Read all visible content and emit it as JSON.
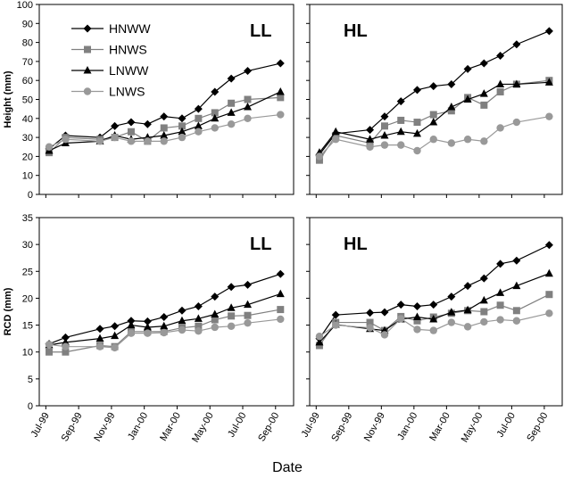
{
  "xlabel": "Date",
  "chart_data": [
    {
      "type": "line",
      "annotation": "LL",
      "ylabel": "Height (mm)",
      "legend": "upper left",
      "x": [
        0.2,
        1.2,
        3.3,
        4.2,
        5.2,
        6.2,
        7.2,
        8.3,
        9.3,
        10.3,
        11.3,
        12.3,
        14.3
      ],
      "xlim": [
        -0.4,
        15.1
      ],
      "xticks": [
        0,
        2,
        4,
        6,
        8,
        10,
        12,
        14
      ],
      "ylim": [
        0,
        100
      ],
      "yticks": [
        0,
        10,
        20,
        30,
        40,
        50,
        60,
        70,
        80,
        90,
        100
      ],
      "series": [
        {
          "name": "HNWW",
          "color": "#000000",
          "marker": "diamond",
          "values": [
            24,
            31,
            30,
            36,
            38,
            37,
            41,
            40,
            45,
            54,
            61,
            65,
            69
          ]
        },
        {
          "name": "HNWS",
          "color": "#808080",
          "marker": "square",
          "values": [
            22,
            30,
            29,
            30,
            33,
            28,
            35,
            36,
            40,
            43,
            48,
            50,
            51
          ]
        },
        {
          "name": "LNWW",
          "color": "#000000",
          "marker": "triangle",
          "values": [
            23,
            27,
            28,
            31,
            29,
            30,
            31,
            33,
            36,
            40,
            43,
            46,
            54
          ]
        },
        {
          "name": "LNWS",
          "color": "#999999",
          "marker": "circle",
          "values": [
            25,
            29,
            28,
            30,
            28,
            28,
            28,
            30,
            33,
            35,
            37,
            40,
            42
          ]
        }
      ]
    },
    {
      "type": "line",
      "annotation": "HL",
      "x": [
        0.2,
        1.2,
        3.3,
        4.2,
        5.2,
        6.2,
        7.2,
        8.3,
        9.3,
        10.3,
        11.3,
        12.3,
        14.3
      ],
      "xlim": [
        -0.4,
        15.1
      ],
      "xticks": [
        0,
        2,
        4,
        6,
        8,
        10,
        12,
        14
      ],
      "ylim": [
        0,
        100
      ],
      "yticks": [
        0,
        10,
        20,
        30,
        40,
        50,
        60,
        70,
        80,
        90,
        100
      ],
      "series": [
        {
          "name": "HNWW",
          "color": "#000000",
          "marker": "diamond",
          "values": [
            21,
            32,
            34,
            41,
            49,
            55,
            57,
            58,
            66,
            69,
            73,
            79,
            86
          ]
        },
        {
          "name": "HNWS",
          "color": "#808080",
          "marker": "square",
          "values": [
            18,
            31,
            27,
            36,
            39,
            38,
            42,
            44,
            51,
            47,
            54,
            58,
            60
          ]
        },
        {
          "name": "LNWW",
          "color": "#000000",
          "marker": "triangle",
          "values": [
            22,
            33,
            29,
            31,
            33,
            32,
            38,
            46,
            50,
            53,
            58,
            58,
            59
          ]
        },
        {
          "name": "LNWS",
          "color": "#999999",
          "marker": "circle",
          "values": [
            20,
            29,
            25,
            26,
            26,
            23,
            29,
            27,
            29,
            28,
            35,
            38,
            41
          ]
        }
      ]
    },
    {
      "type": "line",
      "annotation": "LL",
      "ylabel": "RCD (mm)",
      "x": [
        0.2,
        1.2,
        3.3,
        4.2,
        5.2,
        6.2,
        7.2,
        8.3,
        9.3,
        10.3,
        11.3,
        12.3,
        14.3
      ],
      "xlim": [
        -0.4,
        15.1
      ],
      "xticks": [
        {
          "value": 0,
          "label": "Jul-99"
        },
        {
          "value": 2,
          "label": "Sep-99"
        },
        {
          "value": 4,
          "label": "Nov-99"
        },
        {
          "value": 6,
          "label": "Jan-00"
        },
        {
          "value": 8,
          "label": "Mar-00"
        },
        {
          "value": 10,
          "label": "May-00"
        },
        {
          "value": 12,
          "label": "Jul-00"
        },
        {
          "value": 14,
          "label": "Sep-00"
        }
      ],
      "ylim": [
        0,
        35
      ],
      "yticks": [
        0,
        5,
        10,
        15,
        20,
        25,
        30,
        35
      ],
      "series": [
        {
          "name": "HNWW",
          "color": "#000000",
          "marker": "diamond",
          "values": [
            11.5,
            12.7,
            14.3,
            14.8,
            15.8,
            15.7,
            16.5,
            17.7,
            18.5,
            20.3,
            22.1,
            22.5,
            24.5
          ]
        },
        {
          "name": "HNWS",
          "color": "#808080",
          "marker": "square",
          "values": [
            10,
            10,
            11.2,
            11,
            13.8,
            13.8,
            13.8,
            14.5,
            14.8,
            16,
            16.7,
            16.8,
            17.9
          ]
        },
        {
          "name": "LNWW",
          "color": "#000000",
          "marker": "triangle",
          "values": [
            11.3,
            11.8,
            12.5,
            13,
            15,
            14.6,
            14.8,
            15.8,
            16.2,
            17,
            18.2,
            18.8,
            20.8
          ]
        },
        {
          "name": "LNWS",
          "color": "#999999",
          "marker": "circle",
          "values": [
            11.4,
            11,
            11,
            10.8,
            13.5,
            13.5,
            13.6,
            14.1,
            13.9,
            14.6,
            14.8,
            15.4,
            16.1
          ]
        }
      ]
    },
    {
      "type": "line",
      "annotation": "HL",
      "x": [
        0.2,
        1.2,
        3.3,
        4.2,
        5.2,
        6.2,
        7.2,
        8.3,
        9.3,
        10.3,
        11.3,
        12.3,
        14.3
      ],
      "xlim": [
        -0.4,
        15.1
      ],
      "xticks": [
        {
          "value": 0,
          "label": "Jul-99"
        },
        {
          "value": 2,
          "label": "Sep-99"
        },
        {
          "value": 4,
          "label": "Nov-99"
        },
        {
          "value": 6,
          "label": "Jan-00"
        },
        {
          "value": 8,
          "label": "Mar-00"
        },
        {
          "value": 10,
          "label": "May-00"
        },
        {
          "value": 12,
          "label": "Jul-00"
        },
        {
          "value": 14,
          "label": "Sep-00"
        }
      ],
      "ylim": [
        0,
        35
      ],
      "yticks": [
        0,
        5,
        10,
        15,
        20,
        25,
        30,
        35
      ],
      "series": [
        {
          "name": "HNWW",
          "color": "#000000",
          "marker": "diamond",
          "values": [
            12.5,
            16.9,
            17.3,
            17.4,
            18.8,
            18.5,
            18.8,
            20.3,
            22.3,
            23.7,
            26.4,
            27,
            29.9
          ]
        },
        {
          "name": "HNWS",
          "color": "#808080",
          "marker": "square",
          "values": [
            11.2,
            15.5,
            15.5,
            14,
            16.6,
            15.8,
            16.5,
            17.2,
            17.7,
            17.5,
            18.7,
            17.7,
            20.7
          ]
        },
        {
          "name": "LNWW",
          "color": "#000000",
          "marker": "triangle",
          "values": [
            11.8,
            15.1,
            14.3,
            14,
            16.1,
            16.5,
            16.1,
            17.4,
            17.8,
            19.6,
            21,
            22.3,
            24.6
          ]
        },
        {
          "name": "LNWS",
          "color": "#999999",
          "marker": "circle",
          "values": [
            12.9,
            15,
            14.5,
            13.2,
            16.2,
            14.2,
            14,
            15.5,
            14.7,
            15.6,
            16,
            15.8,
            17.2
          ]
        }
      ]
    }
  ]
}
